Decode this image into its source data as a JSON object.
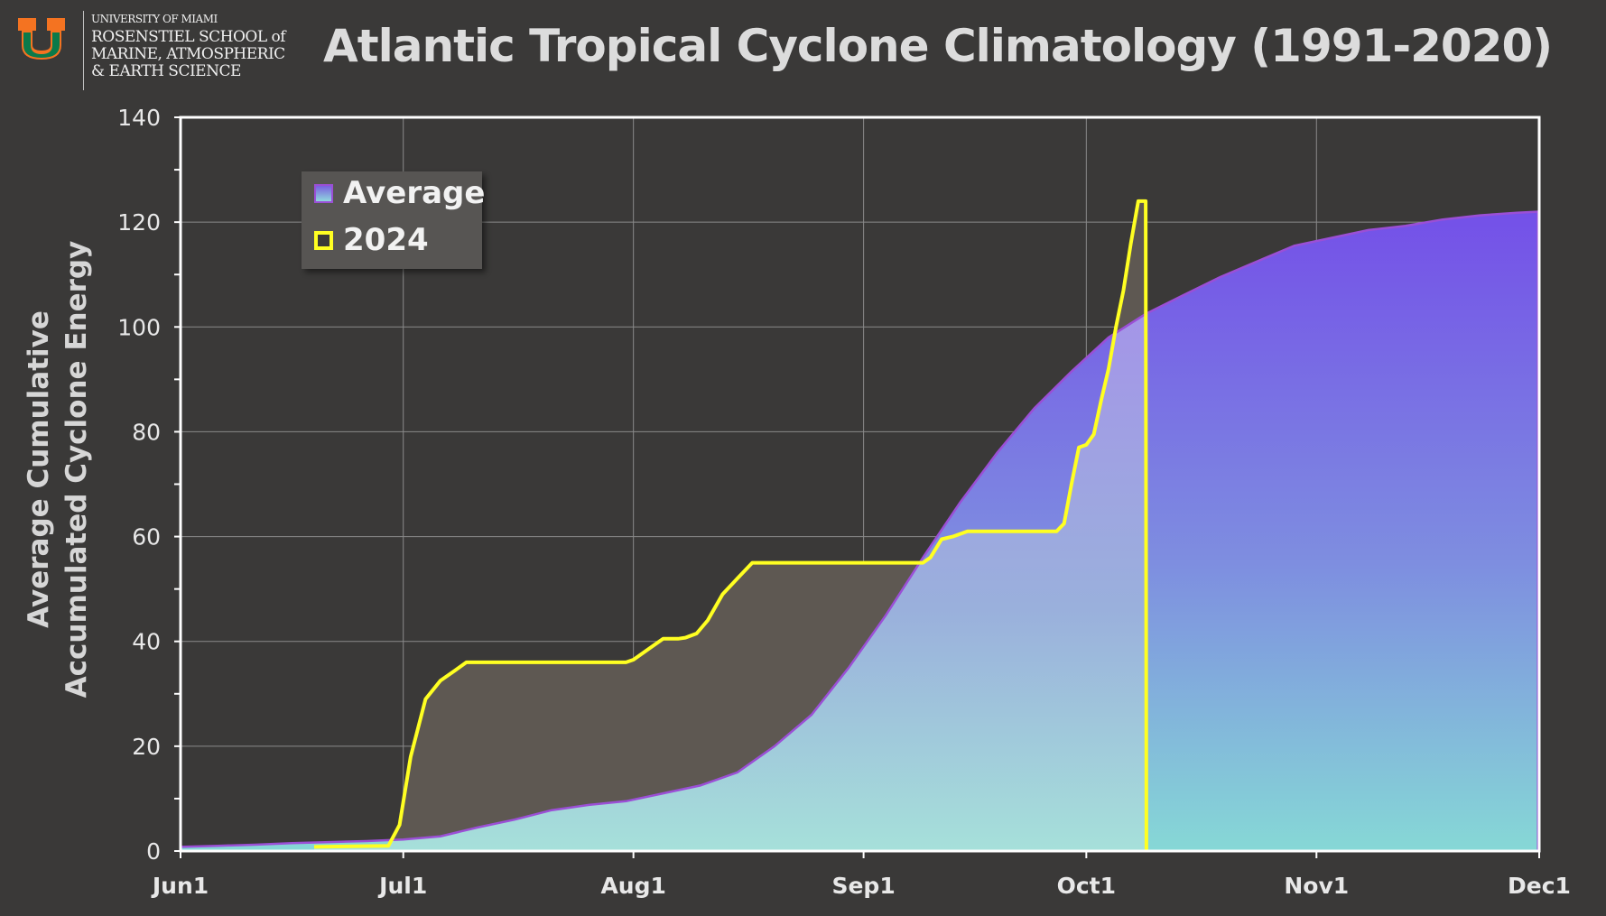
{
  "logo": {
    "line1": "UNIVERSITY OF MIAMI",
    "line2": "ROSENSTIEL SCHOOL of",
    "line3": "MARINE, ATMOSPHERIC",
    "line4": "& EARTH SCIENCE",
    "colors": {
      "green": "#005030",
      "orange": "#f47321"
    }
  },
  "colors": {
    "background": "#3a3938",
    "average_top": "#7755e8",
    "average_bottom": "#8ad6d6",
    "average_edge": "#9b4fd6",
    "year_line": "#ffff22",
    "year_fill": "#5e5852",
    "grid": "#8a8a8a",
    "axis": "#ffffff"
  },
  "chart_data": {
    "type": "area",
    "title": "Atlantic Tropical Cyclone Climatology (1991-2020)",
    "xlabel": "",
    "ylabel": [
      "Average Cumulative",
      "Accumulated Cyclone Energy"
    ],
    "xlim": [
      0,
      183
    ],
    "ylim": [
      0,
      140
    ],
    "yticks": [
      0,
      20,
      40,
      60,
      80,
      100,
      120,
      140
    ],
    "xticks": [
      {
        "x": 0,
        "label": "Jun1"
      },
      {
        "x": 30,
        "label": "Jul1"
      },
      {
        "x": 61,
        "label": "Aug1"
      },
      {
        "x": 92,
        "label": "Sep1"
      },
      {
        "x": 122,
        "label": "Oct1"
      },
      {
        "x": 153,
        "label": "Nov1"
      },
      {
        "x": 183,
        "label": "Dec1"
      }
    ],
    "grid": true,
    "legend_position": "top-left",
    "series": [
      {
        "name": "Average",
        "style": "area",
        "x": [
          0,
          5,
          10,
          15,
          20,
          25,
          30,
          35,
          40,
          45,
          50,
          55,
          60,
          65,
          70,
          75,
          80,
          85,
          90,
          95,
          100,
          105,
          110,
          115,
          120,
          125,
          130,
          135,
          140,
          145,
          150,
          155,
          160,
          165,
          170,
          175,
          180,
          183
        ],
        "values": [
          0.8,
          1.0,
          1.2,
          1.5,
          1.7,
          1.9,
          2.2,
          2.8,
          4.5,
          6.0,
          7.8,
          8.8,
          9.5,
          11.0,
          12.5,
          15.0,
          20.0,
          26.0,
          35.0,
          45.0,
          56.0,
          66.5,
          76.0,
          84.5,
          91.5,
          98.0,
          102.5,
          106.0,
          109.5,
          112.5,
          115.5,
          117.0,
          118.5,
          119.3,
          120.5,
          121.3,
          121.8,
          122.0
        ]
      },
      {
        "name": "2024",
        "style": "line",
        "x": [
          0,
          18,
          28,
          29.5,
          31,
          33,
          35,
          37,
          38.5,
          40,
          60,
          61,
          63,
          65,
          67,
          68,
          69.5,
          71,
          73,
          75,
          77,
          78,
          79,
          80,
          82,
          100,
          101,
          102.5,
          104,
          106,
          118,
          119,
          120,
          121,
          122,
          123,
          124,
          125,
          126,
          127,
          128,
          129,
          130,
          130.1
        ],
        "values": [
          null,
          0.8,
          1.0,
          5,
          18,
          29,
          32.5,
          34.5,
          36,
          36,
          36,
          36.5,
          38.5,
          40.5,
          40.5,
          40.7,
          41.5,
          44,
          49,
          52,
          55,
          55,
          55,
          55,
          55,
          55,
          56,
          59.5,
          60,
          61,
          61,
          62.5,
          70,
          77,
          77.5,
          79.5,
          86,
          92,
          100,
          107,
          116,
          124,
          124,
          0
        ]
      }
    ]
  }
}
